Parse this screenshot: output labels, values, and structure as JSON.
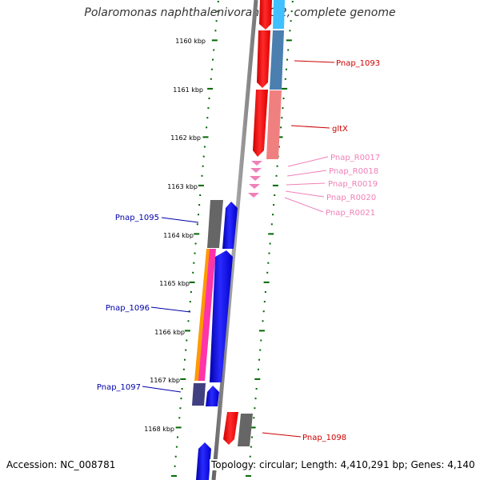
{
  "title": "Polaromonas naphthalenivorans CJ2, complete genome",
  "footer": {
    "accession": "Accession: NC_008781",
    "topology": "Topology: circular; Length: 4,410,291 bp; Genes: 4,140"
  },
  "ticks": [
    "1160 kbp",
    "1161 kbp",
    "1162 kbp",
    "1163 kbp",
    "1164 kbp",
    "1165 kbp",
    "1166 kbp",
    "1167 kbp",
    "1168 kbp"
  ],
  "gene_labels": {
    "right": [
      "Pnap_1093",
      "gltX",
      "Pnap_R0017",
      "Pnap_R0018",
      "Pnap_R0019",
      "Pnap_R0020",
      "Pnap_R0021",
      "Pnap_1098"
    ],
    "left": [
      "Pnap_1095",
      "Pnap_1096",
      "Pnap_1097"
    ]
  },
  "colors": {
    "forward_cds": "#0000ff",
    "reverse_cds": "#ff0000",
    "rna": "#f080b8",
    "other": "#666666",
    "cog_light_blue": "#40c0ff",
    "cog_steel": "#4a7fb0",
    "cog_salmon": "#f08080",
    "cog_orange": "#ff9900",
    "cog_pink": "#ff33aa",
    "cog_indigo": "#404080",
    "tick_green": "#006600",
    "backbone": "#888888"
  }
}
